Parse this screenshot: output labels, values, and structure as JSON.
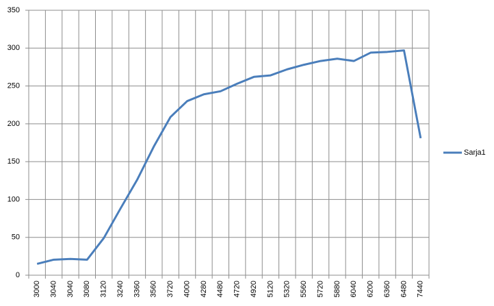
{
  "chart_data": {
    "type": "line",
    "categories": [
      "3000",
      "3040",
      "3040",
      "3080",
      "3120",
      "3240",
      "3360",
      "3560",
      "3720",
      "4000",
      "4280",
      "4480",
      "4720",
      "4920",
      "5120",
      "5320",
      "5560",
      "5720",
      "5880",
      "6040",
      "6200",
      "6360",
      "6480",
      "7440"
    ],
    "series": [
      {
        "name": "Sarja1",
        "color": "#4a7ebb",
        "values": [
          15,
          20.5,
          21.5,
          20.5,
          49,
          88,
          126,
          170,
          209,
          230,
          239,
          243,
          253,
          262,
          264,
          272,
          278,
          283,
          286,
          283,
          294,
          295,
          297,
          181
        ]
      }
    ],
    "ylim": [
      0,
      350
    ],
    "yticks": [
      0,
      50,
      100,
      150,
      200,
      250,
      300,
      350
    ],
    "grid": true,
    "legend": "right"
  }
}
